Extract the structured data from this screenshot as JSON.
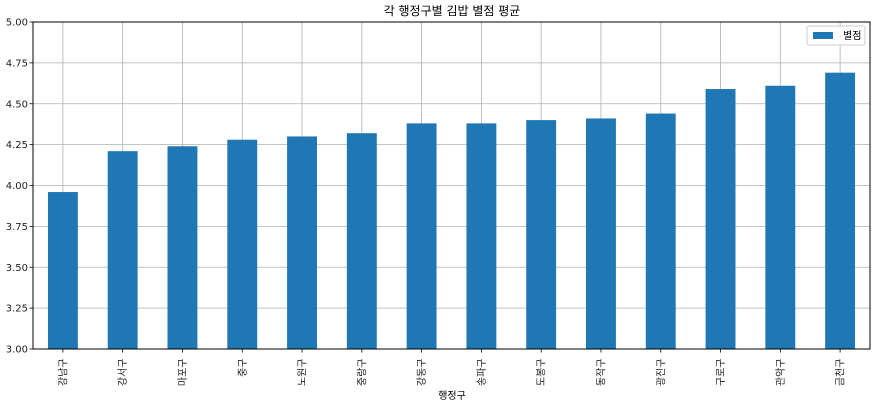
{
  "chart_data": {
    "type": "bar",
    "title": "각 행정구별 김밥 별점 평균",
    "xlabel": "행정구",
    "ylabel": "",
    "ylim": [
      3.0,
      5.0
    ],
    "yticks": [
      "3.00",
      "3.25",
      "3.50",
      "3.75",
      "4.00",
      "4.25",
      "4.50",
      "4.75",
      "5.00"
    ],
    "grid": true,
    "legend_position": "top-right",
    "categories": [
      "강남구",
      "강서구",
      "마포구",
      "중구",
      "노원구",
      "중랑구",
      "강동구",
      "송파구",
      "도봉구",
      "동작구",
      "광진구",
      "구로구",
      "관악구",
      "금천구"
    ],
    "series": [
      {
        "name": "별점",
        "color": "#1f77b4",
        "values": [
          3.96,
          4.21,
          4.24,
          4.28,
          4.3,
          4.32,
          4.38,
          4.38,
          4.4,
          4.41,
          4.44,
          4.59,
          4.61,
          4.69
        ]
      }
    ]
  }
}
